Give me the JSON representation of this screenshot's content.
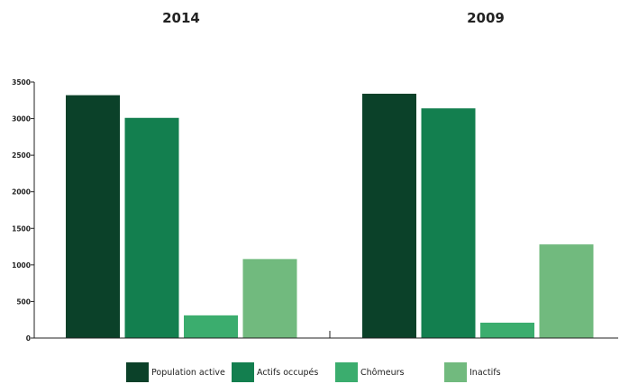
{
  "chart_data": {
    "type": "bar",
    "groups": [
      "2014",
      "2009"
    ],
    "series": [
      {
        "name": "Population active",
        "color": "#0b4129",
        "values": [
          3320,
          3340
        ]
      },
      {
        "name": "Actifs occupés",
        "color": "#137f4f",
        "values": [
          3010,
          3140
        ]
      },
      {
        "name": "Chômeurs",
        "color": "#3bad6e",
        "values": [
          310,
          210
        ]
      },
      {
        "name": "Inactifs",
        "color": "#71ba7e",
        "values": [
          1080,
          1280
        ]
      }
    ],
    "y_ticks": [
      "0",
      "500",
      "1000",
      "1500",
      "2000",
      "2500",
      "3000",
      "3500"
    ],
    "ylim": [
      0,
      3500
    ],
    "grid": false,
    "legend_position": "bottom"
  }
}
